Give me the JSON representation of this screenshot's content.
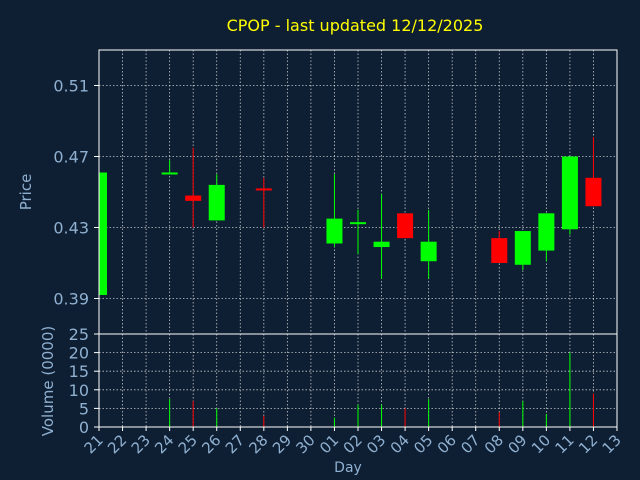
{
  "chart_data": {
    "type": "candlestick",
    "title": "CPOP - last updated 12/12/2025",
    "xlabel": "Day",
    "price_panel": {
      "ylabel": "Price",
      "yticks": [
        "0.39",
        "0.43",
        "0.47",
        "0.51"
      ],
      "ylim": [
        0.37,
        0.53
      ],
      "grid": true
    },
    "volume_panel": {
      "ylabel": "Volume (0000)",
      "yticks": [
        "0",
        "5",
        "10",
        "15",
        "20",
        "25"
      ],
      "ylim": [
        0,
        25
      ],
      "grid": true
    },
    "x_tick_labels": [
      "21",
      "22",
      "23",
      "24",
      "25",
      "26",
      "27",
      "28",
      "29",
      "30",
      "01",
      "02",
      "03",
      "04",
      "05",
      "06",
      "07",
      "08",
      "09",
      "10",
      "11",
      "12",
      "13"
    ],
    "candles": [
      {
        "x": 0,
        "open": 0.392,
        "high": 0.461,
        "low": 0.392,
        "close": 0.461,
        "volume": 0
      },
      {
        "x": 3,
        "open": 0.46,
        "high": 0.468,
        "low": 0.46,
        "close": 0.461,
        "volume": 7.5
      },
      {
        "x": 4,
        "open": 0.448,
        "high": 0.475,
        "low": 0.43,
        "close": 0.445,
        "volume": 7
      },
      {
        "x": 5,
        "open": 0.434,
        "high": 0.46,
        "low": 0.434,
        "close": 0.454,
        "volume": 5
      },
      {
        "x": 7,
        "open": 0.452,
        "high": 0.458,
        "low": 0.43,
        "close": 0.451,
        "volume": 3
      },
      {
        "x": 10,
        "open": 0.421,
        "high": 0.46,
        "low": 0.419,
        "close": 0.435,
        "volume": 2.5
      },
      {
        "x": 11,
        "open": 0.432,
        "high": 0.44,
        "low": 0.415,
        "close": 0.433,
        "volume": 6
      },
      {
        "x": 12,
        "open": 0.419,
        "high": 0.449,
        "low": 0.401,
        "close": 0.422,
        "volume": 6
      },
      {
        "x": 13,
        "open": 0.438,
        "high": 0.438,
        "low": 0.424,
        "close": 0.424,
        "volume": 5
      },
      {
        "x": 14,
        "open": 0.411,
        "high": 0.44,
        "low": 0.401,
        "close": 0.422,
        "volume": 7.5
      },
      {
        "x": 17,
        "open": 0.424,
        "high": 0.428,
        "low": 0.41,
        "close": 0.41,
        "volume": 4
      },
      {
        "x": 18,
        "open": 0.409,
        "high": 0.428,
        "low": 0.406,
        "close": 0.428,
        "volume": 7
      },
      {
        "x": 19,
        "open": 0.417,
        "high": 0.438,
        "low": 0.411,
        "close": 0.438,
        "volume": 3.5
      },
      {
        "x": 20,
        "open": 0.429,
        "high": 0.47,
        "low": 0.426,
        "close": 0.47,
        "volume": 20
      },
      {
        "x": 21,
        "open": 0.458,
        "high": 0.481,
        "low": 0.442,
        "close": 0.442,
        "volume": 9
      }
    ],
    "colors": {
      "background": "#0f1f33",
      "up": "#00ff00",
      "down": "#ff0000",
      "title": "#ffff00",
      "axis_text": "#8fb0d0",
      "frame": "#ffffff",
      "grid": "#ffffff"
    }
  }
}
